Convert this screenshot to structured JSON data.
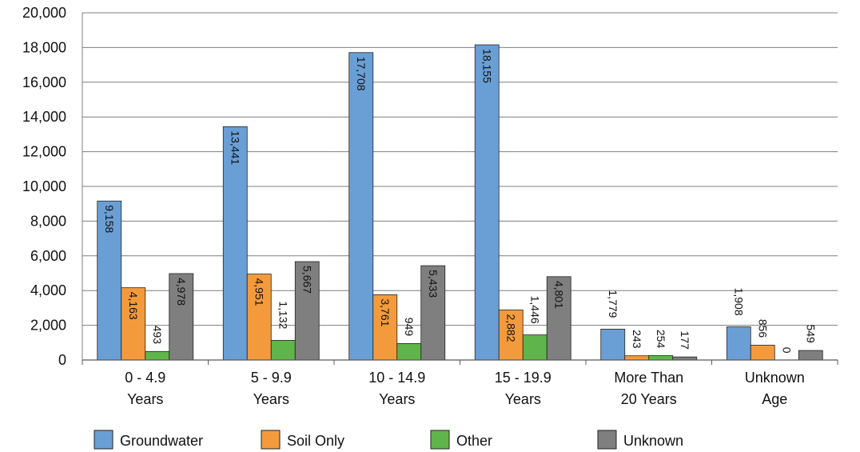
{
  "chart_data": {
    "type": "bar",
    "title": "",
    "xlabel": "",
    "ylabel": "",
    "ylim": [
      0,
      20000
    ],
    "yticks": [
      0,
      2000,
      4000,
      6000,
      8000,
      10000,
      12000,
      14000,
      16000,
      18000,
      20000
    ],
    "ytick_labels": [
      "0",
      "2,000",
      "4,000",
      "6,000",
      "8,000",
      "10,000",
      "12,000",
      "14,000",
      "16,000",
      "18,000",
      "20,000"
    ],
    "grid": true,
    "legend_position": "bottom",
    "categories": [
      [
        "0 - 4.9",
        "Years"
      ],
      [
        "5 - 9.9",
        "Years"
      ],
      [
        "10 - 14.9",
        "Years"
      ],
      [
        "15 - 19.9",
        "Years"
      ],
      [
        "More Than",
        "20 Years"
      ],
      [
        "Unknown",
        "Age"
      ]
    ],
    "series": [
      {
        "name": "Groundwater",
        "color": "#6a9fd6",
        "values": [
          9158,
          13441,
          17708,
          18155,
          1779,
          1908
        ],
        "labels": [
          "9,158",
          "13,441",
          "17,708",
          "18,155",
          "1,779",
          "1,908"
        ]
      },
      {
        "name": "Soil Only",
        "color": "#f39b3c",
        "values": [
          4163,
          4951,
          3761,
          2882,
          243,
          856
        ],
        "labels": [
          "4,163",
          "4,951",
          "3,761",
          "2,882",
          "243",
          "856"
        ]
      },
      {
        "name": "Other",
        "color": "#5fb54a",
        "values": [
          493,
          1132,
          949,
          1446,
          254,
          0
        ],
        "labels": [
          "493",
          "1,132",
          "949",
          "1,446",
          "254",
          "0"
        ]
      },
      {
        "name": "Unknown",
        "color": "#7f7f7f",
        "values": [
          4978,
          5667,
          5433,
          4801,
          177,
          549
        ],
        "labels": [
          "4,978",
          "5,667",
          "5,433",
          "4,801",
          "177",
          "549"
        ]
      }
    ]
  }
}
